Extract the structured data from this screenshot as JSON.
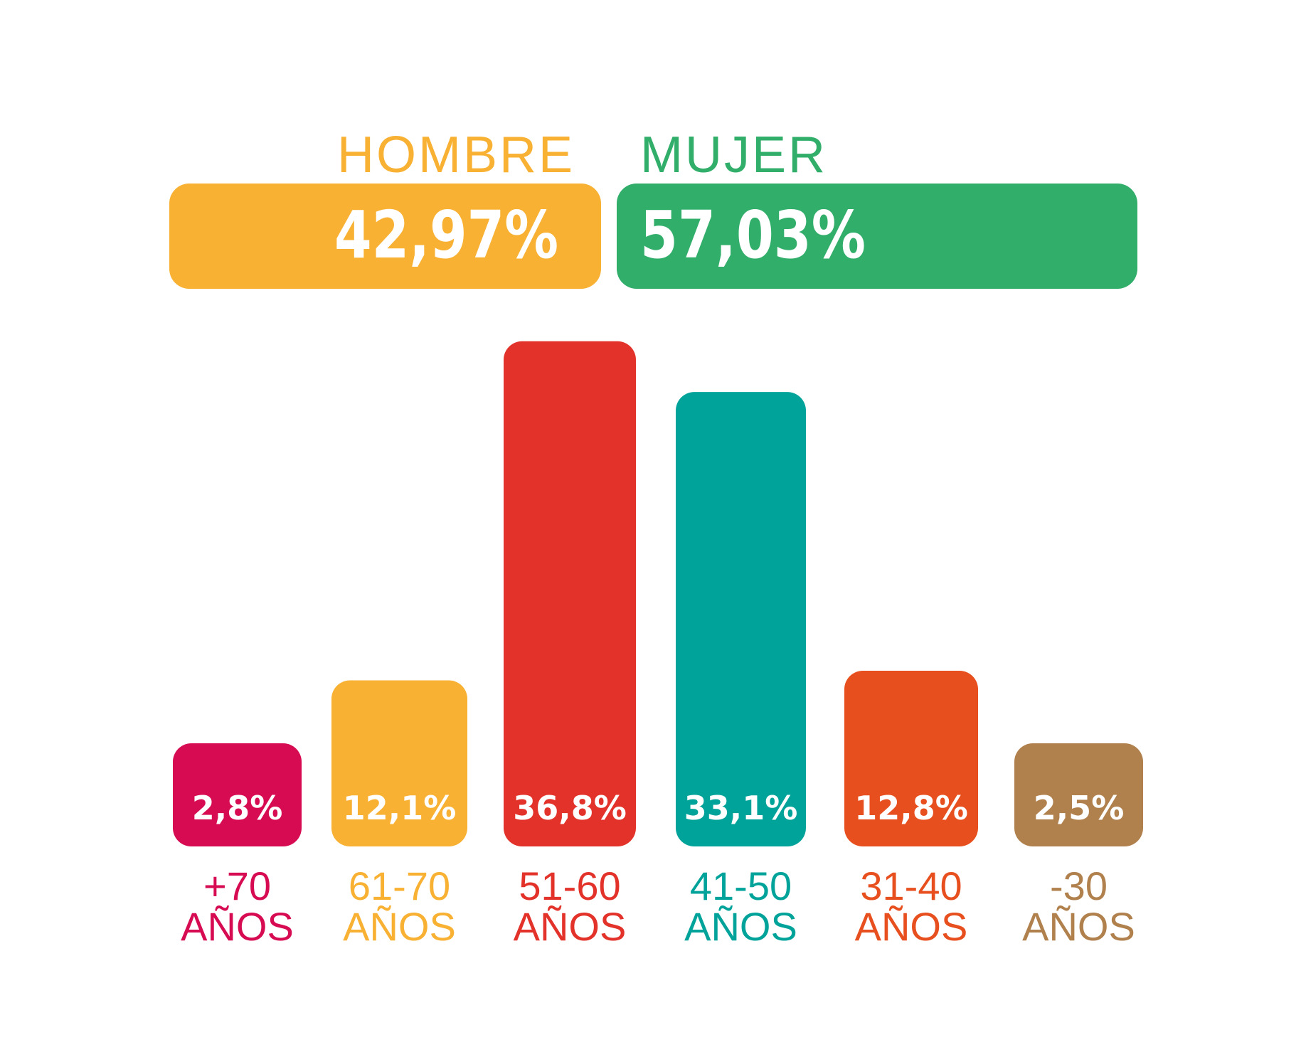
{
  "gender": {
    "male": {
      "label": "HOMBRE",
      "value": 42.97,
      "value_text": "42,97%",
      "color": "#F8B133"
    },
    "female": {
      "label": "MUJER",
      "value": 57.03,
      "value_text": "57,03%",
      "color": "#31AE6A"
    }
  },
  "chart_data": {
    "type": "bar",
    "title": "",
    "xlabel": "",
    "ylabel": "",
    "categories": [
      "+70 AÑOS",
      "61-70 AÑOS",
      "51-60 AÑOS",
      "41-50 AÑOS",
      "31-40 AÑOS",
      "-30 AÑOS"
    ],
    "category_lines": [
      [
        "+70",
        "AÑOS"
      ],
      [
        "61-70",
        "AÑOS"
      ],
      [
        "51-60",
        "AÑOS"
      ],
      [
        "41-50",
        "AÑOS"
      ],
      [
        "31-40",
        "AÑOS"
      ],
      [
        "-30",
        "AÑOS"
      ]
    ],
    "values": [
      2.8,
      12.1,
      36.8,
      33.1,
      12.8,
      2.5
    ],
    "value_labels": [
      "2,8%",
      "12,1%",
      "36,8%",
      "33,1%",
      "12,8%",
      "2,5%"
    ],
    "colors": [
      "#D60B52",
      "#F8B133",
      "#E3322A",
      "#00A39A",
      "#E84F1E",
      "#B0804D"
    ],
    "grid": false,
    "legend": "none"
  }
}
